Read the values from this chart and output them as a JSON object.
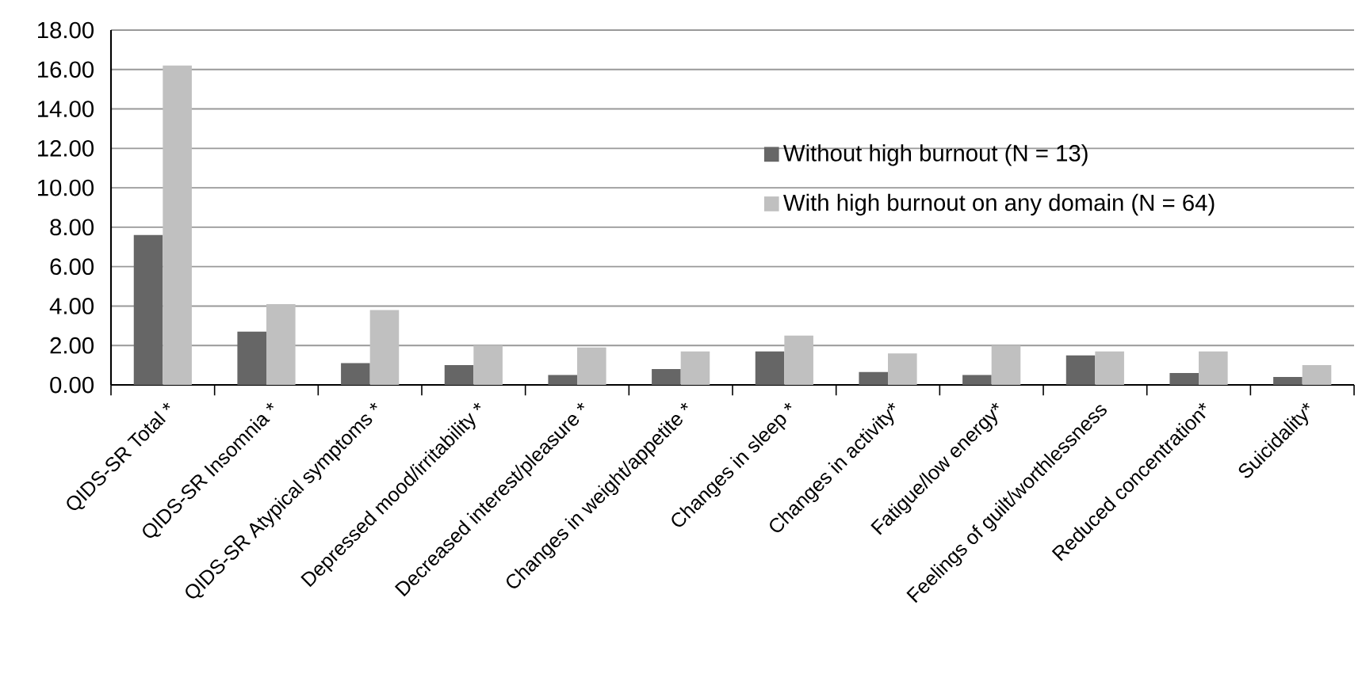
{
  "chart_data": {
    "type": "bar",
    "categories": [
      "QIDS-SR Total *",
      "QIDS-SR Insomnia *",
      "QIDS-SR Atypical symptoms *",
      "Depressed mood/irritability *",
      "Decreased interest/pleasure *",
      "Changes in weight/appetite *",
      "Changes in sleep *",
      "Changes in activity*",
      "Fatigue/low energy*",
      "Feelings of guilt/worthlessness",
      "Reduced concentration*",
      "Suicidality*"
    ],
    "series": [
      {
        "name": "Without high burnout (N = 13)",
        "color": "#666666",
        "values": [
          7.6,
          2.7,
          1.1,
          1.0,
          0.5,
          0.8,
          1.7,
          0.65,
          0.5,
          1.5,
          0.6,
          0.4
        ]
      },
      {
        "name": "With high burnout on any domain (N = 64)",
        "color": "#c0c0c0",
        "values": [
          16.2,
          4.1,
          3.8,
          2.0,
          1.9,
          1.7,
          2.5,
          1.6,
          2.0,
          1.7,
          1.7,
          1.0
        ]
      }
    ],
    "ylim": [
      0,
      18
    ],
    "yticks": [
      {
        "value": 0,
        "label": "0.00"
      },
      {
        "value": 2,
        "label": "2.00"
      },
      {
        "value": 4,
        "label": "4.00"
      },
      {
        "value": 6,
        "label": "6.00"
      },
      {
        "value": 8,
        "label": "8.00"
      },
      {
        "value": 10,
        "label": "10.00"
      },
      {
        "value": 12,
        "label": "12.00"
      },
      {
        "value": 14,
        "label": "14.00"
      },
      {
        "value": 16,
        "label": "16.00"
      },
      {
        "value": 18,
        "label": "18.00"
      }
    ],
    "grid": "y",
    "legend": "center"
  }
}
